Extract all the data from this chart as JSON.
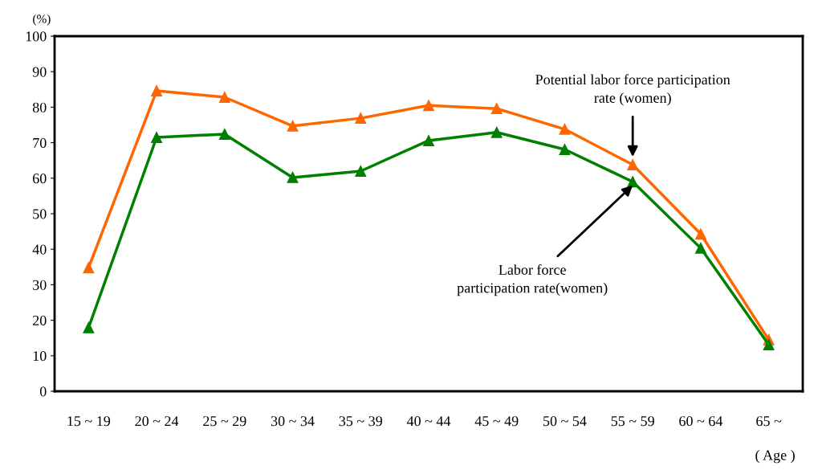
{
  "chart_data": {
    "type": "line",
    "ylabel": "(%)",
    "xlabel": "( Age )",
    "categories": [
      "15 ~ 19",
      "20 ~ 24",
      "25 ~ 29",
      "30 ~ 34",
      "35 ~ 39",
      "40 ~ 44",
      "45 ~ 49",
      "50 ~ 54",
      "55 ~ 59",
      "60 ~ 64",
      "65 ~"
    ],
    "series": [
      {
        "color": "#ff6600",
        "values": [
          34.8,
          84.6,
          82.8,
          74.7,
          76.9,
          80.5,
          79.6,
          73.8,
          63.8,
          44.3,
          14.5
        ]
      },
      {
        "color": "#008000",
        "values": [
          17.9,
          71.5,
          72.4,
          60.2,
          62.0,
          70.6,
          72.9,
          68.1,
          59.0,
          40.3,
          13.1
        ]
      }
    ],
    "annotations": [
      {
        "text": "Potential labor force participation\nrate (women)",
        "x": "55 ~ 59",
        "y": 66
      },
      {
        "text": "Labor force\nparticipation rate(women)",
        "x": "55 ~ 59",
        "y": 58
      }
    ],
    "ylim": [
      0,
      100
    ],
    "yticks": [
      0,
      10,
      20,
      30,
      40,
      50,
      60,
      70,
      80,
      90,
      100
    ],
    "grid": false,
    "marker": "triangle",
    "line_style": "solid"
  }
}
